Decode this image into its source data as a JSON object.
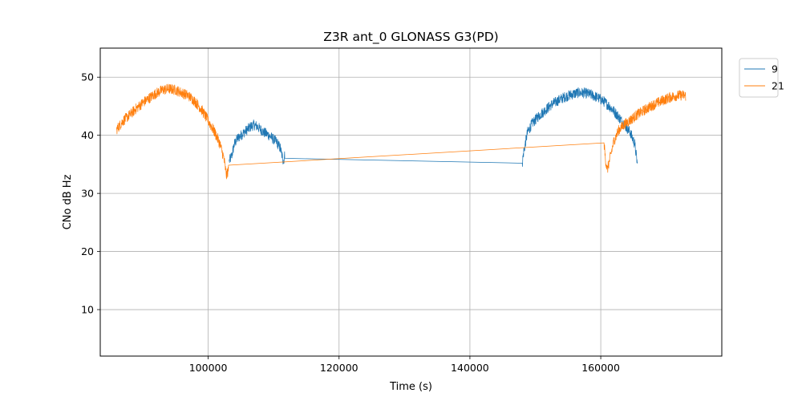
{
  "chart_data": {
    "type": "line",
    "title": "Z3R ant_0 GLONASS G3(PD)",
    "xlabel": "Time (s)",
    "ylabel": "CNo dB Hz",
    "xlim": [
      83500,
      178500
    ],
    "ylim": [
      2,
      55
    ],
    "xticks": [
      100000,
      120000,
      140000,
      160000
    ],
    "yticks": [
      10,
      20,
      30,
      40,
      50
    ],
    "grid": true,
    "legend_position": "outside-top-right",
    "series": [
      {
        "name": "9",
        "color": "#1f77b4",
        "noise": 0.9,
        "points": [
          [
            103200,
            35.5
          ],
          [
            103600,
            36.5
          ],
          [
            104000,
            38.5
          ],
          [
            104500,
            39.5
          ],
          [
            105000,
            40.0
          ],
          [
            105500,
            40.5
          ],
          [
            106000,
            41.0
          ],
          [
            106500,
            41.5
          ],
          [
            107000,
            41.8
          ],
          [
            107500,
            41.5
          ],
          [
            108000,
            41.0
          ],
          [
            108500,
            40.5
          ],
          [
            109000,
            40.2
          ],
          [
            109500,
            39.8
          ],
          [
            110000,
            39.3
          ],
          [
            110500,
            38.8
          ],
          [
            111000,
            37.8
          ],
          [
            111500,
            35.5
          ],
          [
            111700,
            36.6
          ],
          [
            148000,
            35.2
          ],
          [
            148200,
            37.0
          ],
          [
            148800,
            40.5
          ],
          [
            149500,
            42.0
          ],
          [
            150500,
            43.3
          ],
          [
            151500,
            44.3
          ],
          [
            152500,
            45.3
          ],
          [
            153500,
            46.0
          ],
          [
            154500,
            46.6
          ],
          [
            155500,
            47.0
          ],
          [
            156500,
            47.3
          ],
          [
            157500,
            47.3
          ],
          [
            158500,
            47.0
          ],
          [
            159500,
            46.5
          ],
          [
            160500,
            45.8
          ],
          [
            161500,
            44.8
          ],
          [
            162500,
            43.5
          ],
          [
            163500,
            42.0
          ],
          [
            164500,
            40.5
          ],
          [
            165200,
            38.5
          ],
          [
            165600,
            35.0
          ]
        ]
      },
      {
        "name": "21",
        "color": "#ff7f0e",
        "noise": 0.9,
        "points": [
          [
            86000,
            41.0
          ],
          [
            87000,
            42.5
          ],
          [
            88000,
            43.5
          ],
          [
            89000,
            44.6
          ],
          [
            90000,
            45.6
          ],
          [
            91000,
            46.4
          ],
          [
            92000,
            47.2
          ],
          [
            93000,
            47.8
          ],
          [
            94000,
            48.0
          ],
          [
            95000,
            47.8
          ],
          [
            96000,
            47.3
          ],
          [
            97000,
            46.8
          ],
          [
            98000,
            45.8
          ],
          [
            99000,
            44.4
          ],
          [
            100000,
            42.5
          ],
          [
            101000,
            40.5
          ],
          [
            101800,
            38.5
          ],
          [
            102400,
            36.0
          ],
          [
            102800,
            33.0
          ],
          [
            103100,
            34.2
          ],
          [
            160500,
            38.7
          ],
          [
            160700,
            36.0
          ],
          [
            161000,
            34.0
          ],
          [
            161500,
            36.5
          ],
          [
            162000,
            39.0
          ],
          [
            162700,
            40.8
          ],
          [
            163500,
            41.8
          ],
          [
            164500,
            42.6
          ],
          [
            165500,
            43.5
          ],
          [
            166500,
            44.2
          ],
          [
            167500,
            44.9
          ],
          [
            168500,
            45.5
          ],
          [
            169500,
            46.0
          ],
          [
            170500,
            46.5
          ],
          [
            171500,
            46.8
          ],
          [
            172500,
            46.9
          ],
          [
            173000,
            46.8
          ]
        ]
      }
    ]
  }
}
